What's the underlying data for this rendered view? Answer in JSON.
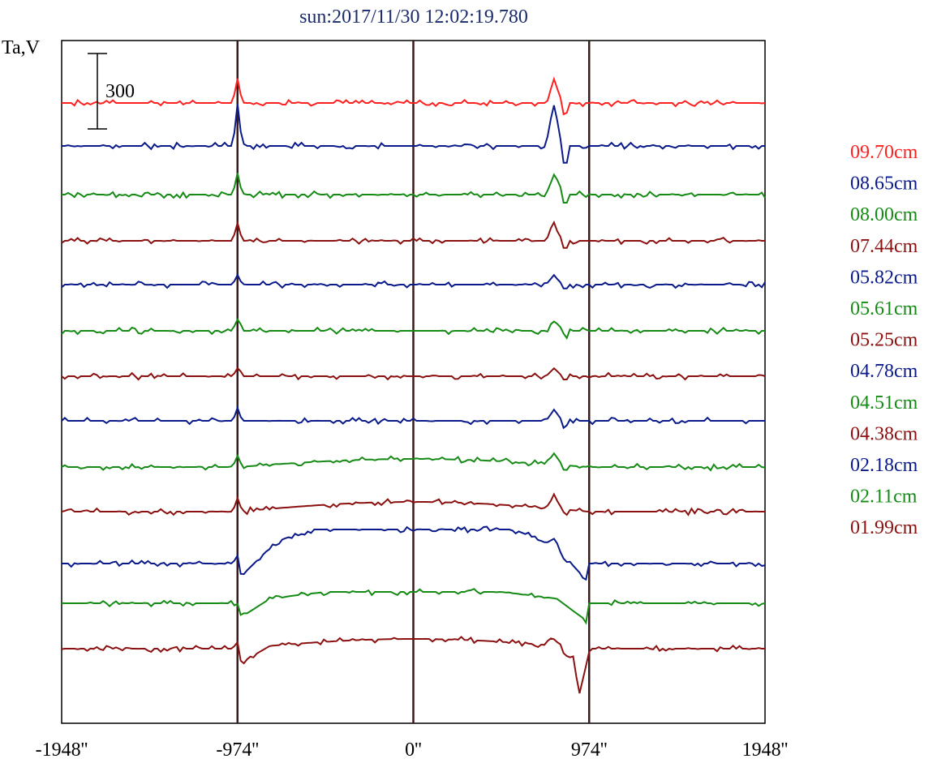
{
  "chart_data": {
    "type": "line",
    "title": "sun:2017/11/30 12:02:19.780",
    "ylabel": "Ta,V",
    "scale_bar_label": "300",
    "x_ticks": [
      {
        "value": -1948,
        "label": "-1948''"
      },
      {
        "value": -974,
        "label": "-974''"
      },
      {
        "value": 0,
        "label": "0''"
      },
      {
        "value": 974,
        "label": "974''"
      },
      {
        "value": 1948,
        "label": "1948''"
      }
    ],
    "vertical_lines_at": [
      -974,
      0,
      974
    ],
    "xlim": [
      -1948,
      1948
    ],
    "colors": {
      "red": "#ff2020",
      "navy": "#0a1a8a",
      "green": "#158a15",
      "maroon": "#8b1010",
      "title": "#1a2a6a",
      "axis": "#000000",
      "limb_lines": "#3a1a1a"
    },
    "series": [
      {
        "name": "09.70cm",
        "color": "red",
        "offset": 127,
        "profile": "disk_flat",
        "peak": 30,
        "rise": 0
      },
      {
        "name": "08.65cm",
        "color": "navy",
        "offset": 180,
        "profile": "disk_flat",
        "peak": 52,
        "rise": 0
      },
      {
        "name": "08.00cm",
        "color": "green",
        "offset": 240,
        "profile": "disk_flat",
        "peak": 25,
        "rise": 0
      },
      {
        "name": "07.44cm",
        "color": "maroon",
        "offset": 297,
        "profile": "disk_flat",
        "peak": 22,
        "rise": 0
      },
      {
        "name": "05.82cm",
        "color": "navy",
        "offset": 351,
        "profile": "disk_flat",
        "peak": 12,
        "rise": 0
      },
      {
        "name": "05.61cm",
        "color": "green",
        "offset": 408,
        "profile": "disk_flat",
        "peak": 14,
        "rise": 0
      },
      {
        "name": "05.25cm",
        "color": "maroon",
        "offset": 464,
        "profile": "disk_flat",
        "peak": 10,
        "rise": 0
      },
      {
        "name": "04.78cm",
        "color": "navy",
        "offset": 519,
        "profile": "disk_flat",
        "peak": 14,
        "rise": 0
      },
      {
        "name": "04.51cm",
        "color": "green",
        "offset": 576,
        "profile": "disk_bump",
        "peak": 14,
        "rise": 10
      },
      {
        "name": "04.38cm",
        "color": "maroon",
        "offset": 631,
        "profile": "disk_bump",
        "peak": 16,
        "rise": 12
      },
      {
        "name": "02.18cm",
        "color": "navy",
        "offset": 695,
        "profile": "disk_high",
        "peak": 10,
        "rise": 42
      },
      {
        "name": "02.11cm",
        "color": "green",
        "offset": 744,
        "profile": "disk_smooth",
        "peak": 0,
        "rise": 14
      },
      {
        "name": "01.99cm",
        "color": "maroon",
        "offset": 800,
        "profile": "disk_dip",
        "peak": 8,
        "rise": 12
      }
    ]
  }
}
